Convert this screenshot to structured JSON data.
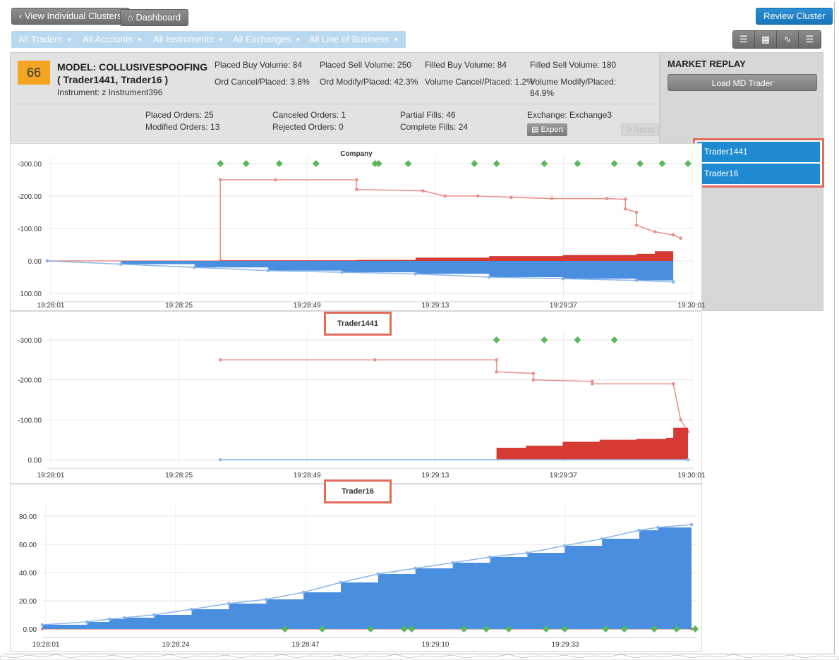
{
  "toolbar": {
    "back_label": "View Individual Clusters",
    "dashboard_label": "Dashboard",
    "review_label": "Review Cluster"
  },
  "filters": [
    {
      "label": "All Traders"
    },
    {
      "label": "All Accounts"
    },
    {
      "label": "All Instruments"
    },
    {
      "label": "All Exchanges"
    },
    {
      "label": "All Line of Business"
    }
  ],
  "view_icons": [
    "list-icon",
    "grid-icon",
    "chart-icon",
    "layers-icon"
  ],
  "cluster": {
    "score": "66",
    "model_line1": "MODEL: COLLUSIVESPOOFING",
    "model_line2": "( Trader1441, Trader16 )",
    "instrument": "Instrument: z Instrument396",
    "stats_row1": [
      "Placed Buy Volume: 84",
      "Placed Sell Volume: 250",
      "Filled Buy Volume: 84",
      "Filled Sell Volume: 180"
    ],
    "stats_row2": [
      "Ord Cancel/Placed: 3.8%",
      "Ord Modify/Placed: 42.3%",
      "Volume Cancel/Placed: 1.2%",
      "Volume Modify/Placed:",
      "84.9%"
    ],
    "counts": [
      "Placed Orders: 25",
      "Modified Orders: 13",
      "Canceled Orders: 1",
      "Rejected Orders: 0",
      "Partial Fills: 46",
      "Complete Fills: 24",
      "Exchange: Exchange3"
    ],
    "export_label": "Export",
    "reset_label": "Reset"
  },
  "market_replay": {
    "title": "MARKET REPLAY",
    "load_label": "Load MD Trader",
    "traders": [
      "Trader1441",
      "Trader16"
    ]
  },
  "colors": {
    "sell": "#e8908a",
    "sell_fill": "#d53a33",
    "buy": "#8ab6ea",
    "buy_fill": "#4a8ee0",
    "marker": "#5cb85c",
    "highlight": "#e36a5c",
    "score": "#f4a623"
  },
  "chart_data": [
    {
      "type": "line",
      "title": "Company",
      "x_ticks": [
        "19:28:01",
        "19:28:25",
        "19:28:49",
        "19:29:13",
        "19:29:37",
        "19:30:01"
      ],
      "y_ticks": [
        "-300.00",
        "-200.00",
        "-100.00",
        "0.00",
        "100.00"
      ],
      "ylim": [
        100,
        -300
      ],
      "series": [
        {
          "role": "sell",
          "x": [
            0,
            47,
            47,
            62,
            84,
            84,
            102,
            108,
            117,
            126,
            137,
            152,
            157,
            157,
            160,
            160,
            165,
            170,
            172
          ],
          "y": [
            0,
            0,
            -250,
            -250,
            -250,
            -220,
            -216,
            -200,
            -200,
            -196,
            -192,
            -192,
            -190,
            -160,
            -150,
            -110,
            -90,
            -80,
            -70
          ]
        },
        {
          "role": "sell_net",
          "x": [
            0,
            47,
            84,
            100,
            120,
            140,
            160,
            165,
            170
          ],
          "y": [
            0,
            -2,
            -3,
            -10,
            -15,
            -18,
            -22,
            -30,
            -40
          ]
        },
        {
          "role": "buy",
          "x": [
            0,
            20,
            40,
            60,
            80,
            100,
            120,
            140,
            160,
            170
          ],
          "y": [
            0,
            10,
            20,
            30,
            35,
            40,
            50,
            55,
            60,
            65
          ]
        }
      ],
      "markers_x": [
        47,
        54,
        63,
        73,
        89,
        90,
        98,
        116,
        122,
        135,
        144,
        154,
        161,
        167,
        174
      ]
    },
    {
      "type": "line",
      "title": "Trader1441",
      "x_ticks": [
        "19:28:01",
        "19:28:25",
        "19:28:49",
        "19:29:13",
        "19:29:37",
        "19:30:01"
      ],
      "y_ticks": [
        "-300.00",
        "-200.00",
        "-100.00",
        "0.00"
      ],
      "ylim": [
        0,
        -300
      ],
      "series": [
        {
          "role": "sell",
          "x": [
            47,
            89,
            122,
            122,
            132,
            132,
            148,
            148,
            170,
            172,
            174
          ],
          "y": [
            -250,
            -250,
            -250,
            -220,
            -216,
            -200,
            -196,
            -190,
            -190,
            -100,
            -70
          ]
        },
        {
          "role": "sell_net",
          "x": [
            122,
            130,
            140,
            150,
            160,
            168,
            170,
            174
          ],
          "y": [
            -30,
            -35,
            -45,
            -50,
            -52,
            -55,
            -80,
            -100
          ]
        },
        {
          "role": "buy",
          "x": [
            47,
            174
          ],
          "y": [
            0,
            0
          ]
        }
      ],
      "markers_x": [
        122,
        135,
        144,
        154
      ]
    },
    {
      "type": "line",
      "title": "Trader16",
      "x_ticks": [
        "19:28:01",
        "19:28:24",
        "19:28:47",
        "19:29:10",
        "19:29:33"
      ],
      "y_ticks": [
        "0.00",
        "20.00",
        "40.00",
        "60.00",
        "80.00"
      ],
      "ylim": [
        0,
        85
      ],
      "series": [
        {
          "role": "sell",
          "x": [
            0,
            174
          ],
          "y": [
            0,
            0
          ]
        },
        {
          "role": "buy",
          "x": [
            0,
            12,
            18,
            22,
            30,
            40,
            50,
            60,
            70,
            80,
            90,
            100,
            110,
            120,
            130,
            140,
            150,
            160,
            165,
            174
          ],
          "y": [
            3,
            5,
            7,
            8,
            10,
            14,
            18,
            21,
            26,
            33,
            39,
            43,
            47,
            51,
            54,
            59,
            64,
            70,
            72,
            74
          ]
        }
      ],
      "markers_x": [
        65,
        75,
        88,
        97,
        99,
        113,
        119,
        125,
        135,
        140,
        151,
        156,
        164,
        170,
        175
      ]
    }
  ]
}
